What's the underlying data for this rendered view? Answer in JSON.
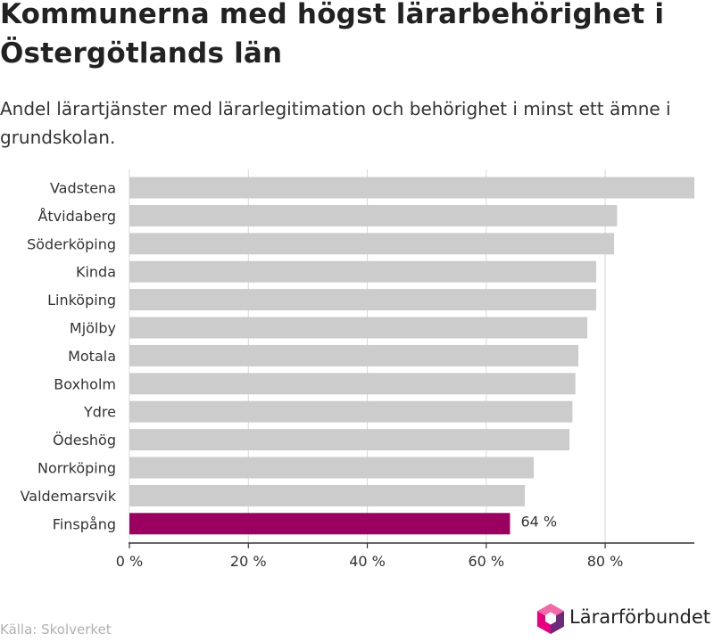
{
  "title": "Kommunerna med högst lärarbehörighet i Östergötlands län",
  "subtitle": "Andel lärartjänster med lärarlegitimation och behörighet i minst ett ämne i grundskolan.",
  "source": "Källa: Skolverket",
  "logo": {
    "text": "Lärarförbundet"
  },
  "colors": {
    "bar": "#cccccc",
    "highlight": "#990060",
    "grid": "#d9d9d9",
    "axis": "#333333",
    "logo_pink": "#e6007e",
    "logo_purple": "#6b2a7a"
  },
  "chart_data": {
    "type": "bar",
    "orientation": "horizontal",
    "categories": [
      "Vadstena",
      "Åtvidaberg",
      "Söderköping",
      "Kinda",
      "Linköping",
      "Mjölby",
      "Motala",
      "Boxholm",
      "Ydre",
      "Ödeshög",
      "Norrköping",
      "Valdemarsvik",
      "Finspång"
    ],
    "values": [
      95,
      82,
      81.5,
      78.5,
      78.5,
      77,
      75.5,
      75,
      74.5,
      74,
      68,
      66.5,
      64
    ],
    "highlight_index": 12,
    "data_labels": [
      "",
      "",
      "",
      "",
      "",
      "",
      "",
      "",
      "",
      "",
      "",
      "",
      "64 %"
    ],
    "x_ticks": [
      0,
      20,
      40,
      60,
      80
    ],
    "x_tick_labels": [
      "0 %",
      "20 %",
      "40 %",
      "60 %",
      "80 %"
    ],
    "xlim": [
      0,
      95
    ],
    "grid": "vertical"
  }
}
